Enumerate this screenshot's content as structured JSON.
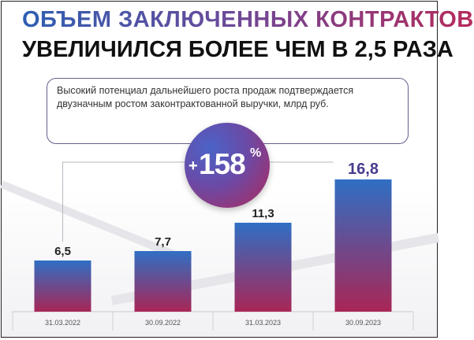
{
  "header": {
    "title_line1": "ОБЪЕМ ЗАКЛЮЧЕННЫХ КОНТРАКТОВ",
    "title_line2": "УВЕЛИЧИЛСЯ БОЛЕЕ ЧЕМ В 2,5 РАЗА"
  },
  "note": {
    "text": "Высокий потенциал дальнейшего роста продаж подтверждается двузначным ростом законтрактованной выручки, млрд руб."
  },
  "badge": {
    "plus": "+",
    "value": "158",
    "percent": "%"
  },
  "colors": {
    "bar_top": "#2f6fc4",
    "bar_bottom": "#a92656",
    "last_label": "#4a3a8c",
    "label": "#222222"
  },
  "chart_data": {
    "type": "bar",
    "categories": [
      "31.03.2022",
      "30.09.2022",
      "31.03.2023",
      "30.09.2023"
    ],
    "values": [
      6.5,
      7.7,
      11.3,
      16.8
    ],
    "value_labels": [
      "6,5",
      "7,7",
      "11,3",
      "16,8"
    ],
    "ylim": [
      0,
      20
    ],
    "grid": false
  }
}
